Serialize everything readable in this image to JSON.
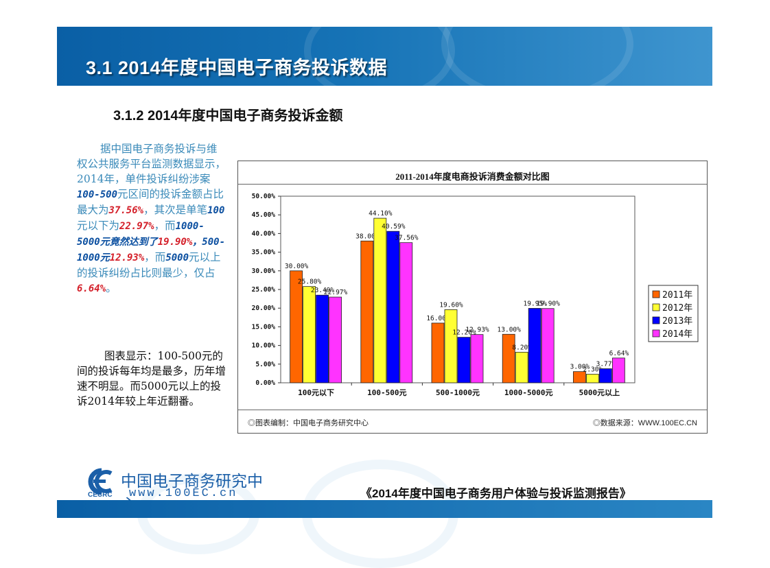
{
  "header": {
    "title": "3.1  2014年度中国电子商务投诉数据"
  },
  "subtitle": "3.1.2 2014年度中国电子商务投诉金额",
  "paragraph1": {
    "p1": "据中国电子商务投诉与维权公共服务平台监测数据显示，2014年，单件投诉纠纷涉案",
    "v1": "100-500",
    "p2": "元区间的投诉金额占比最大为",
    "v2": "37.56%",
    "p3": "，其次是单笔",
    "v3": "100",
    "p4": "元以下为",
    "v4": "22.97%",
    "p5": "，而",
    "v5": "1000-5000元竟然达到了",
    "v6": "19.90%",
    "p6": "，",
    "v7": "500-1000元",
    "v8": "12.93%",
    "p7": "，而",
    "v9": "5000",
    "p8": "元以上的投诉纠纷占比则最少，仅占",
    "v10": "6.64%",
    "p9": "。"
  },
  "paragraph2": "图表显示：100-500元的间的投诉每年均是最多，历年增速不明显。而5000元以上的投诉2014年较上年近翻番。",
  "chart_footer": {
    "left": "◎图表编制：中国电子商务研究中心",
    "right": "◎数据来源：WWW.100EC.CN"
  },
  "logo": {
    "cn": "中国电子商务研究中心",
    "abbr": "CECRC",
    "url": "www.100EC.cn"
  },
  "report_title": "《2014年度中国电子商务用户体验与投诉监测报告》",
  "chart_data": {
    "type": "bar",
    "title": "2011-2014年度电商投诉消费金额对比图",
    "categories": [
      "100元以下",
      "100-500元",
      "500-1000元",
      "1000-5000元",
      "5000元以上"
    ],
    "series": [
      {
        "name": "2011年",
        "color": "#ff6600",
        "values": [
          30.0,
          38.0,
          16.0,
          13.0,
          3.0
        ],
        "labels": [
          "30.00%",
          "38.00%",
          "16.00%",
          "13.00%",
          "3.00%"
        ]
      },
      {
        "name": "2012年",
        "color": "#ffff33",
        "values": [
          25.8,
          44.1,
          19.6,
          8.2,
          2.3
        ],
        "labels": [
          "25.80%",
          "44.10%",
          "19.60%",
          "8.20%",
          "2.30%"
        ]
      },
      {
        "name": "2013年",
        "color": "#0000ff",
        "values": [
          23.49,
          40.59,
          12.2,
          19.95,
          3.77
        ],
        "labels": [
          "23.49%",
          "40.59%",
          "12.20%",
          "19.95%",
          "3.77%"
        ]
      },
      {
        "name": "2014年",
        "color": "#ff33ff",
        "values": [
          22.97,
          37.56,
          12.93,
          19.9,
          6.64
        ],
        "labels": [
          "22.97%",
          "37.56%",
          "12.93%",
          "19.90%",
          "6.64%"
        ]
      }
    ],
    "yticks": [
      "0.00%",
      "5.00%",
      "10.00%",
      "15.00%",
      "20.00%",
      "25.00%",
      "30.00%",
      "35.00%",
      "40.00%",
      "45.00%",
      "50.00%"
    ],
    "ylim": [
      0,
      50
    ],
    "legend": "right"
  }
}
